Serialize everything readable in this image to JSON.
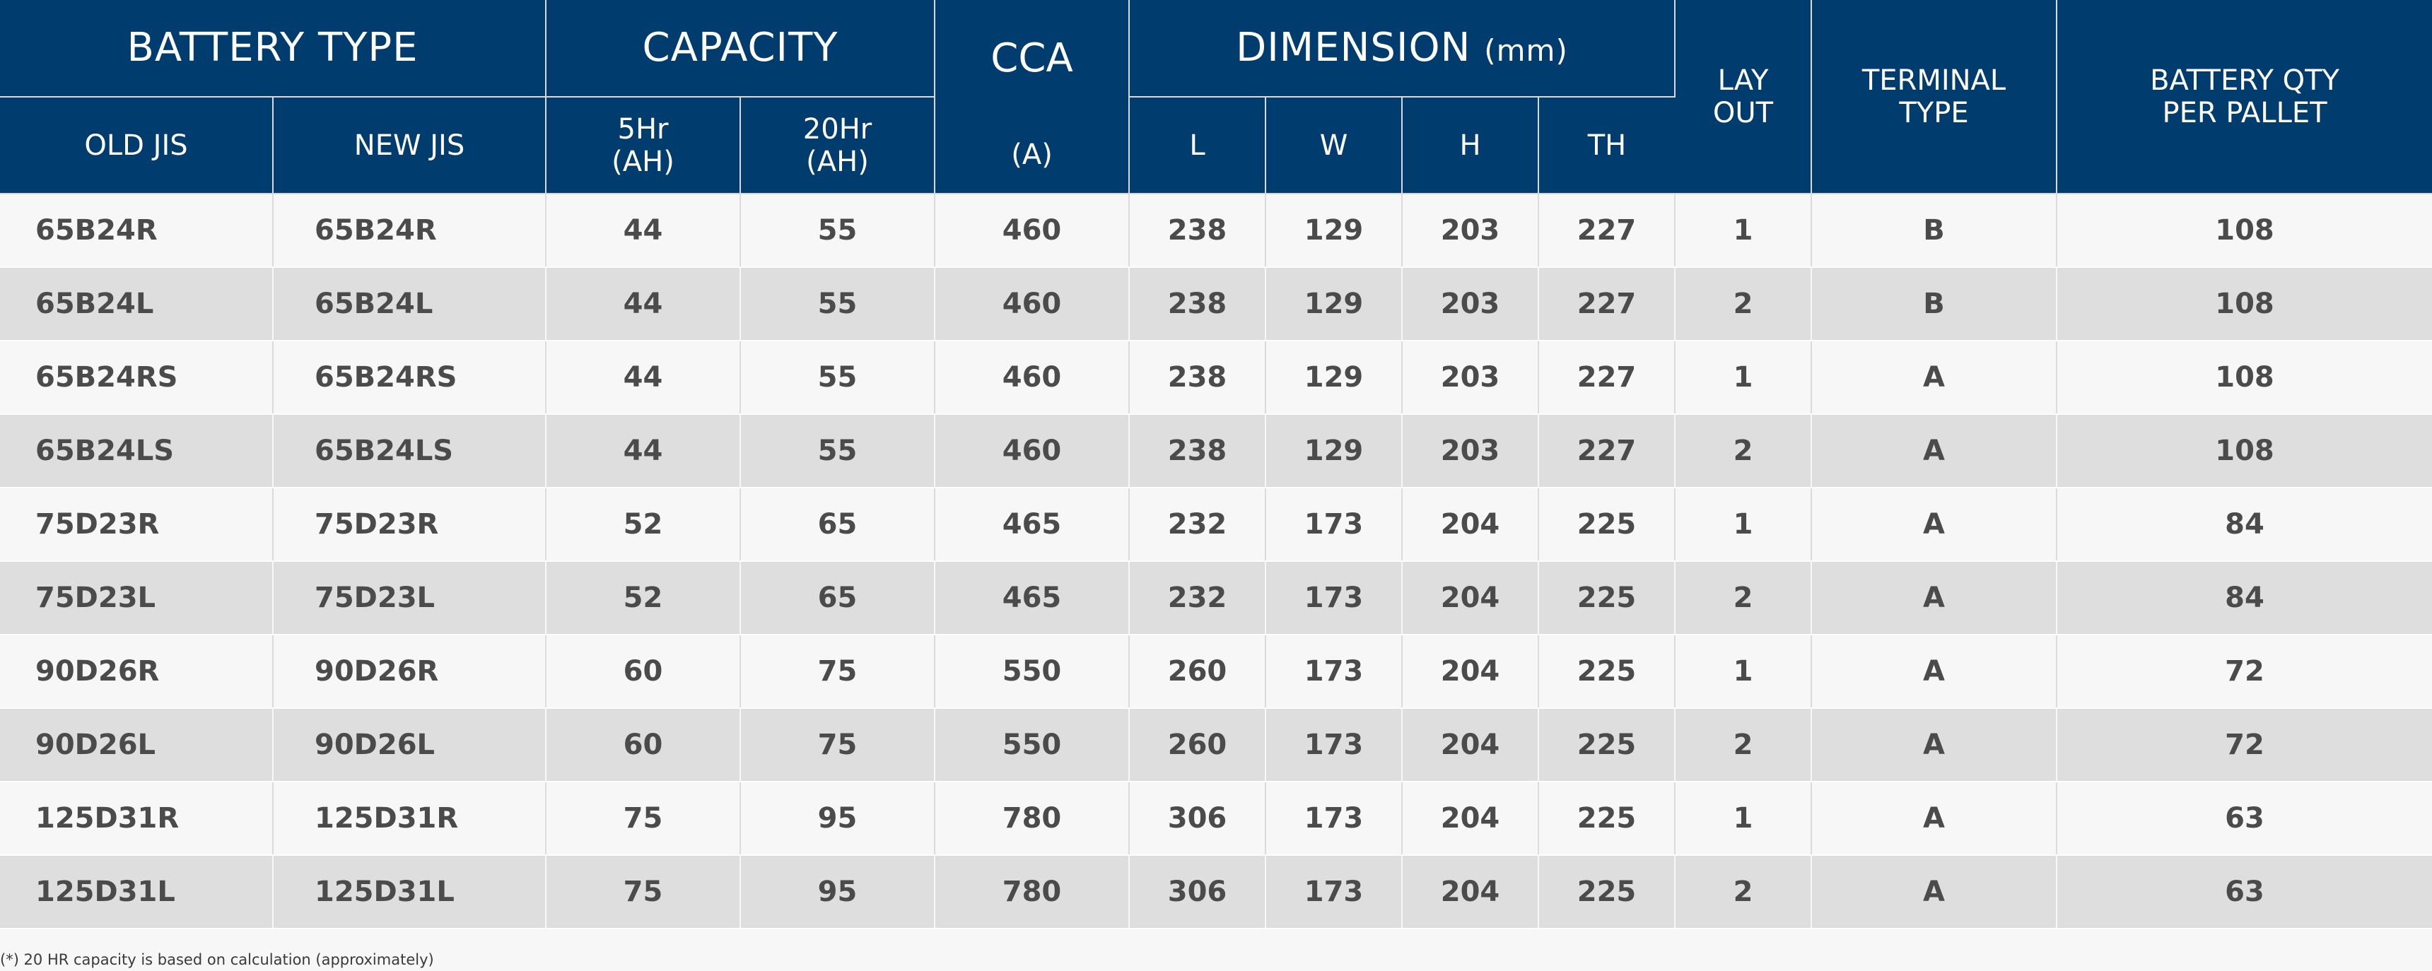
{
  "header": {
    "battery_type": "BATTERY TYPE",
    "capacity": "CAPACITY",
    "cca": "CCA",
    "cca_unit": "(A)",
    "dimension": "DIMENSION",
    "dimension_unit": "(mm)",
    "layout_line1": "LAY",
    "layout_line2": "OUT",
    "terminal_line1": "TERMINAL",
    "terminal_line2": "TYPE",
    "qty_line1": "BATTERY QTY",
    "qty_line2": "PER PALLET",
    "old_jis": "OLD JIS",
    "new_jis": "NEW JIS",
    "cap5_line1": "5Hr",
    "cap5_line2": "(AH)",
    "cap20_line1": "20Hr",
    "cap20_line2": "(AH)",
    "dim_l": "L",
    "dim_w": "W",
    "dim_h": "H",
    "dim_th": "TH"
  },
  "rows": [
    [
      "65B24R",
      "65B24R",
      "44",
      "55",
      "460",
      "238",
      "129",
      "203",
      "227",
      "1",
      "B",
      "108"
    ],
    [
      "65B24L",
      "65B24L",
      "44",
      "55",
      "460",
      "238",
      "129",
      "203",
      "227",
      "2",
      "B",
      "108"
    ],
    [
      "65B24RS",
      "65B24RS",
      "44",
      "55",
      "460",
      "238",
      "129",
      "203",
      "227",
      "1",
      "A",
      "108"
    ],
    [
      "65B24LS",
      "65B24LS",
      "44",
      "55",
      "460",
      "238",
      "129",
      "203",
      "227",
      "2",
      "A",
      "108"
    ],
    [
      "75D23R",
      "75D23R",
      "52",
      "65",
      "465",
      "232",
      "173",
      "204",
      "225",
      "1",
      "A",
      "84"
    ],
    [
      "75D23L",
      "75D23L",
      "52",
      "65",
      "465",
      "232",
      "173",
      "204",
      "225",
      "2",
      "A",
      "84"
    ],
    [
      "90D26R",
      "90D26R",
      "60",
      "75",
      "550",
      "260",
      "173",
      "204",
      "225",
      "1",
      "A",
      "72"
    ],
    [
      "90D26L",
      "90D26L",
      "60",
      "75",
      "550",
      "260",
      "173",
      "204",
      "225",
      "2",
      "A",
      "72"
    ],
    [
      "125D31R",
      "125D31R",
      "75",
      "95",
      "780",
      "306",
      "173",
      "204",
      "225",
      "1",
      "A",
      "63"
    ],
    [
      "125D31L",
      "125D31L",
      "75",
      "95",
      "780",
      "306",
      "173",
      "204",
      "225",
      "2",
      "A",
      "63"
    ]
  ],
  "footnote": "(*) 20 HR capacity is based on calculation (approximately)",
  "colors": {
    "header_bg": "#003d6e",
    "row_light": "#f7f7f7",
    "row_dark": "#dedede"
  }
}
